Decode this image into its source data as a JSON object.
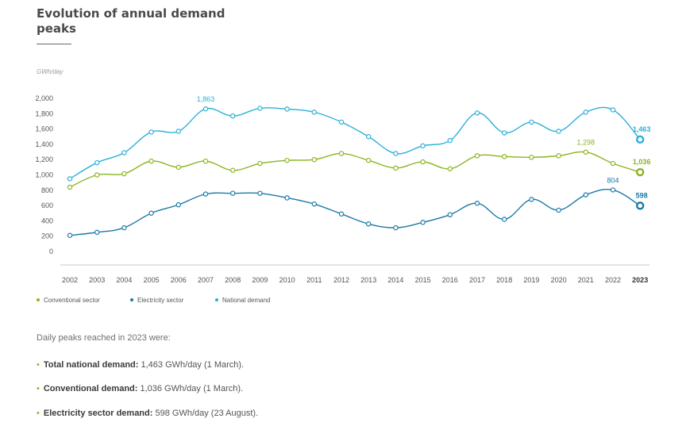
{
  "header": {
    "title": "Evolution of annual demand peaks"
  },
  "chart_data": {
    "type": "line",
    "title": "Evolution of annual demand peaks",
    "ylabel": "GWh/day",
    "xlabel": "",
    "ylim": [
      0,
      2000
    ],
    "yticks": [
      "2,000",
      "1,800",
      "1,600",
      "1,400",
      "1,200",
      "1,000",
      "800",
      "600",
      "400",
      "200",
      "0"
    ],
    "categories": [
      "2002",
      "2003",
      "2004",
      "2005",
      "2006",
      "2007",
      "2008",
      "2009",
      "2010",
      "2011",
      "2012",
      "2013",
      "2014",
      "2015",
      "2016",
      "2017",
      "2018",
      "2019",
      "2020",
      "2021",
      "2022",
      "2023"
    ],
    "grid": false,
    "legend": "bottom-left",
    "series": [
      {
        "name": "National demand",
        "color": "#2bb0d8",
        "values": [
          950,
          1160,
          1290,
          1560,
          1570,
          1863,
          1770,
          1870,
          1860,
          1820,
          1690,
          1500,
          1280,
          1380,
          1450,
          1810,
          1550,
          1690,
          1570,
          1820,
          1850,
          1463
        ]
      },
      {
        "name": "Conventional sector",
        "color": "#8bb51e",
        "values": [
          840,
          1000,
          1015,
          1180,
          1100,
          1180,
          1060,
          1150,
          1190,
          1200,
          1280,
          1190,
          1090,
          1170,
          1080,
          1250,
          1240,
          1230,
          1250,
          1298,
          1150,
          1036
        ]
      },
      {
        "name": "Electricity sector",
        "color": "#1a7aa6",
        "values": [
          210,
          250,
          310,
          500,
          610,
          750,
          760,
          760,
          700,
          620,
          490,
          360,
          310,
          380,
          480,
          630,
          420,
          680,
          540,
          740,
          804,
          598
        ]
      }
    ],
    "annotations": [
      {
        "series": 0,
        "index": 5,
        "text": "1,863"
      },
      {
        "series": 0,
        "index": 21,
        "text": "1,463"
      },
      {
        "series": 1,
        "index": 19,
        "text": "1,298"
      },
      {
        "series": 1,
        "index": 21,
        "text": "1,036"
      },
      {
        "series": 2,
        "index": 20,
        "text": "804"
      },
      {
        "series": 2,
        "index": 21,
        "text": "598"
      }
    ]
  },
  "legend": {
    "items": [
      {
        "label": "Conventional sector",
        "color": "#8bb51e"
      },
      {
        "label": "Electricity sector",
        "color": "#1a7aa6"
      },
      {
        "label": "National demand",
        "color": "#2bb0d8"
      }
    ]
  },
  "notes": {
    "intro": "Daily peaks reached in 2023 were:",
    "items": [
      {
        "label": "Total national demand:",
        "value": " 1,463 GWh/day (1 March)."
      },
      {
        "label": "Conventional demand:",
        "value": " 1,036 GWh/day (1 March)."
      },
      {
        "label": "Electricity sector demand:",
        "value": " 598 GWh/day (23 August)."
      }
    ]
  }
}
